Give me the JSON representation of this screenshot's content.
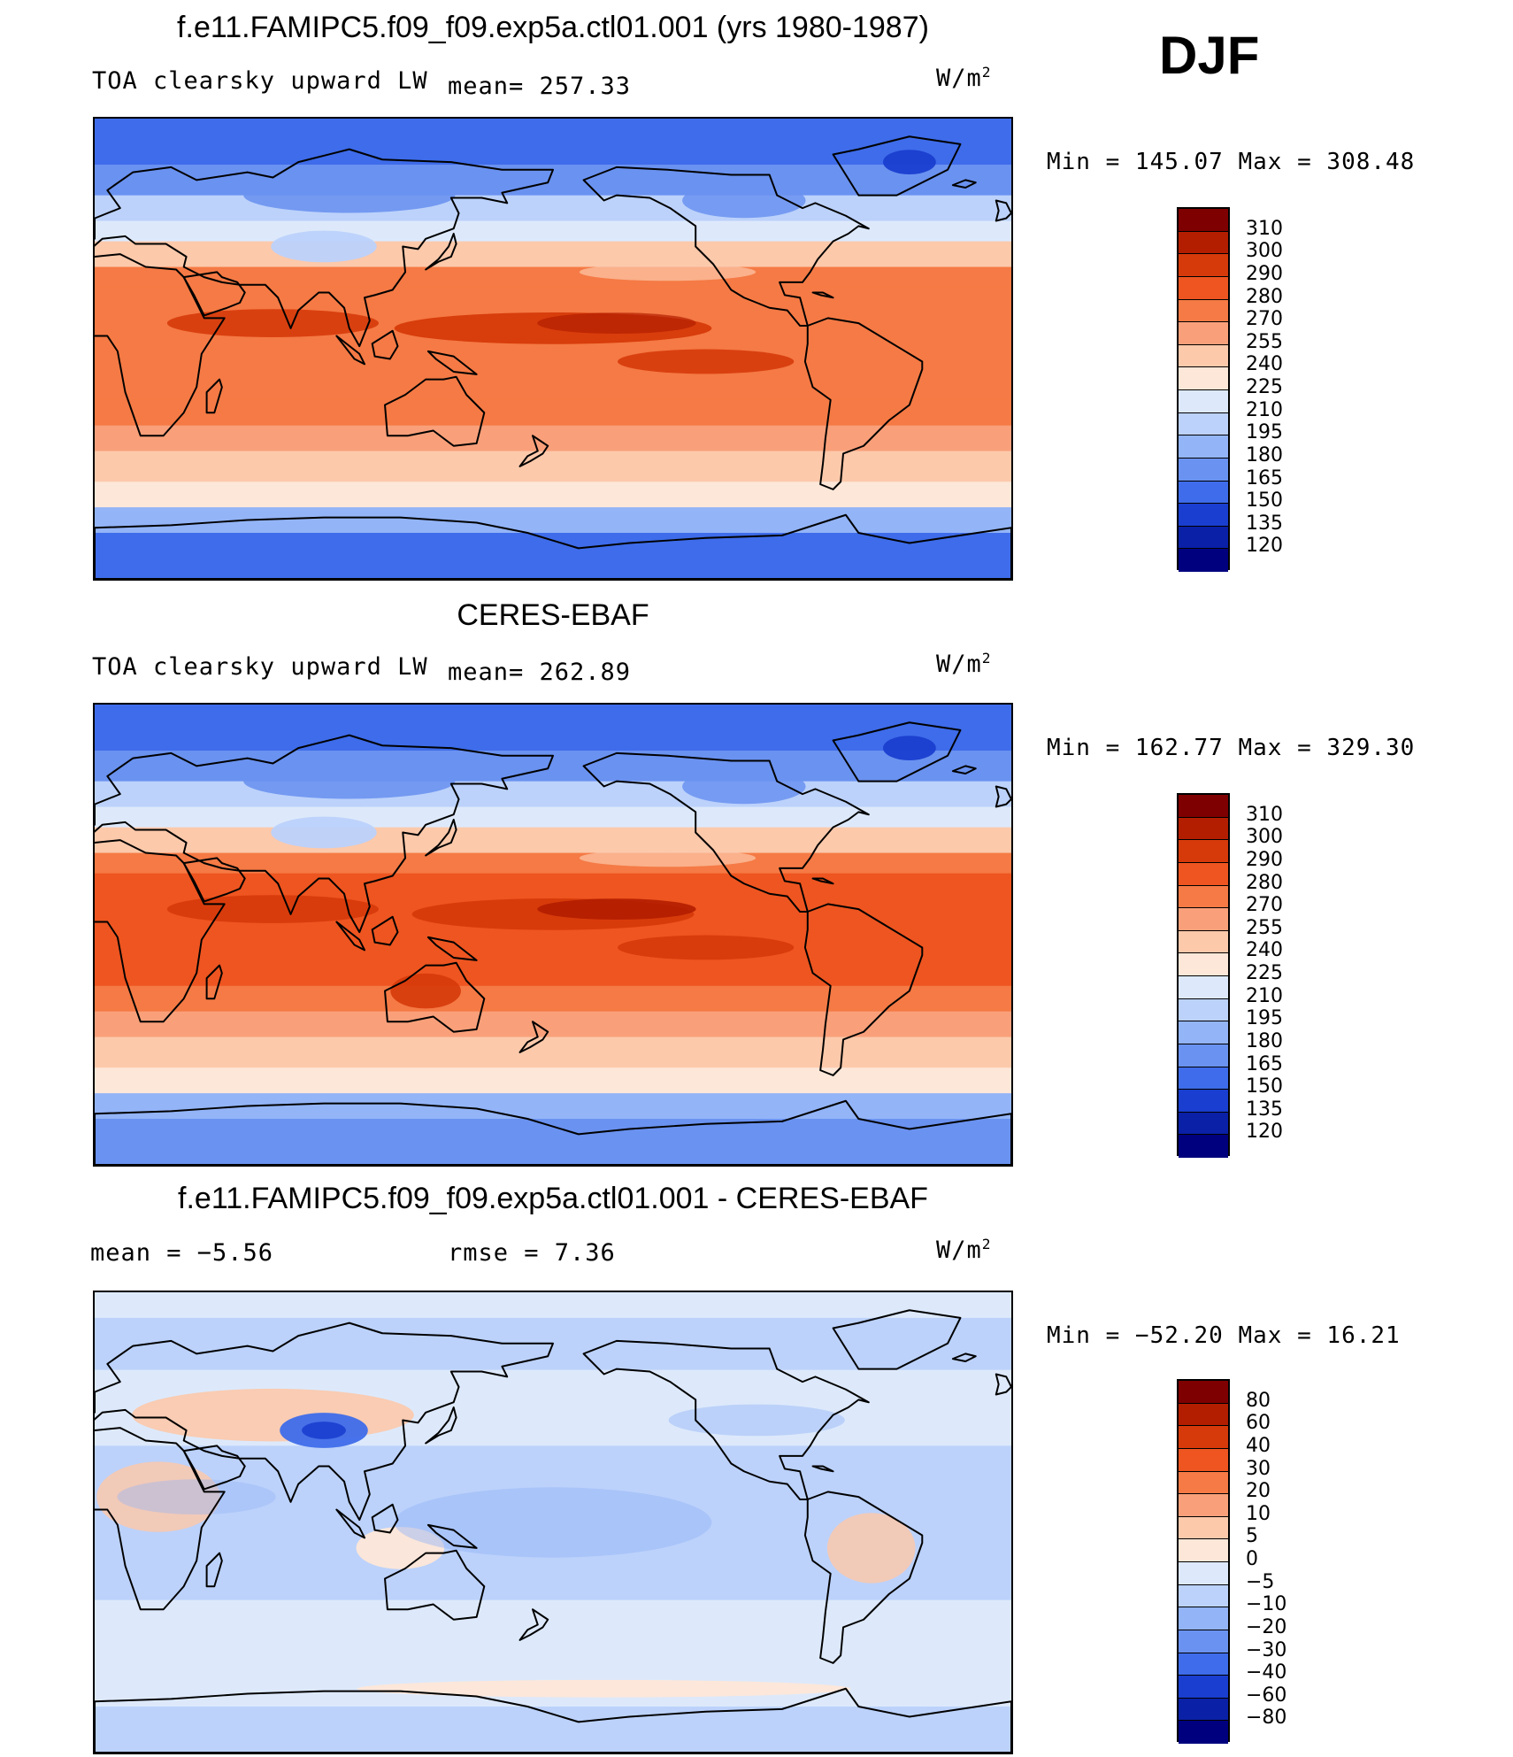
{
  "season": "DJF",
  "panels": [
    {
      "title": "f.e11.FAMIPC5.f09_f09.exp5a.ctl01.001 (yrs 1980-1987)",
      "field_label": "TOA clearsky upward LW",
      "stat_left": "",
      "stat_mid": "mean= 257.33",
      "units": "W/m",
      "units_exp": "2",
      "minmax": "Min = 145.07 Max = 308.48",
      "kind": "model"
    },
    {
      "title": "CERES-EBAF",
      "field_label": "TOA clearsky upward LW",
      "stat_left": "",
      "stat_mid": "mean= 262.89",
      "units": "W/m",
      "units_exp": "2",
      "minmax": "Min = 162.77 Max = 329.30",
      "kind": "obs"
    },
    {
      "title": "f.e11.FAMIPC5.f09_f09.exp5a.ctl01.001 - CERES-EBAF",
      "field_label": "",
      "stat_left": "mean =   −5.56",
      "stat_mid": "rmse =    7.36",
      "units": "W/m",
      "units_exp": "2",
      "minmax": "Min = −52.20 Max =  16.21",
      "kind": "diff"
    }
  ],
  "colorbars": {
    "abs": {
      "labels": [
        "310",
        "300",
        "290",
        "280",
        "270",
        "255",
        "240",
        "225",
        "210",
        "195",
        "180",
        "165",
        "150",
        "135",
        "120"
      ],
      "colors": [
        "#7f0000",
        "#b31e00",
        "#d63a0a",
        "#ee5520",
        "#f57a45",
        "#f9a07a",
        "#fcc9ab",
        "#fde7d8",
        "#dde9fb",
        "#bcd2fb",
        "#93b4f7",
        "#6a92f0",
        "#3e6cea",
        "#1a3ecf",
        "#0a20a6",
        "#00007f"
      ]
    },
    "diff": {
      "labels": [
        "80",
        "60",
        "40",
        "30",
        "20",
        "10",
        "5",
        "0",
        "−5",
        "−10",
        "−20",
        "−30",
        "−40",
        "−60",
        "−80"
      ],
      "colors": [
        "#7f0000",
        "#b31e00",
        "#d63a0a",
        "#ee5520",
        "#f57a45",
        "#f9a07a",
        "#fcc9ab",
        "#fde7d8",
        "#dde9fb",
        "#bcd2fb",
        "#93b4f7",
        "#6a92f0",
        "#3e6cea",
        "#1a3ecf",
        "#0a20a6",
        "#00007f"
      ]
    }
  }
}
